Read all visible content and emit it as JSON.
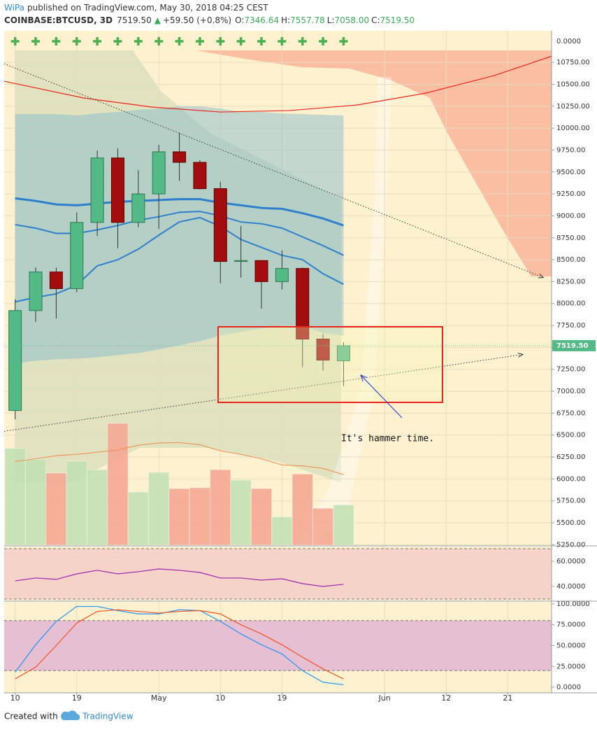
{
  "header": {
    "author": "WiPa",
    "published": "published on TradingView.com, May 30, 2018 04:25 CEST",
    "symbol": "COINBASE:BTCUSD, 3D",
    "last": "7519.50",
    "change": "+59.50 (+0.8%)",
    "ohlc": [
      {
        "label": "O:",
        "value": "7346.64"
      },
      {
        "label": "H:",
        "value": "7557.78"
      },
      {
        "label": "L:",
        "value": "7058.00"
      },
      {
        "label": "C:",
        "value": "7519.50"
      }
    ]
  },
  "footer": {
    "created": "Created with",
    "brand": "TradingView"
  },
  "chart_data": [
    {
      "type": "candlestick",
      "x": [
        0,
        3,
        6,
        9,
        12,
        15,
        18,
        21,
        24,
        27,
        30,
        33,
        36,
        39,
        42,
        45,
        48
      ],
      "open": [
        6780,
        7920,
        8360,
        8170,
        8925,
        9660,
        8925,
        9250,
        9730,
        9610,
        9310,
        8480,
        8490,
        8250,
        8400,
        7595,
        7346.64
      ],
      "high": [
        8050,
        8410,
        8410,
        9040,
        9745,
        9770,
        9520,
        9810,
        9950,
        9635,
        9390,
        8885,
        8495,
        8605,
        8410,
        7650,
        7557.78
      ],
      "low": [
        6680,
        7790,
        7830,
        8130,
        8770,
        8630,
        8870,
        8850,
        9400,
        9300,
        8230,
        8295,
        7940,
        8160,
        7275,
        7235,
        7058.0
      ],
      "close": [
        7920,
        8360,
        8170,
        8925,
        9660,
        8925,
        9250,
        9730,
        9610,
        9310,
        8480,
        8490,
        8250,
        8400,
        7595,
        7355,
        7519.5
      ],
      "up_color": "#53b987",
      "down_color": "#a30d0d",
      "xlim": [
        -1.6,
        78.4
      ],
      "xticks": [
        {
          "value": 0,
          "label": "10"
        },
        {
          "value": 9,
          "label": "19"
        },
        {
          "value": 21,
          "label": "May"
        },
        {
          "value": 30,
          "label": "10"
        },
        {
          "value": 39,
          "label": "19"
        },
        {
          "value": 54,
          "label": "Jun"
        },
        {
          "value": 63,
          "label": "12"
        },
        {
          "value": 72,
          "label": "21"
        }
      ],
      "ylim": [
        5245,
        11110
      ],
      "yticks": [
        {
          "value": 5250,
          "label": "5250.00"
        },
        {
          "value": 5500,
          "label": "5500.00"
        },
        {
          "value": 5750,
          "label": "5750.00"
        },
        {
          "value": 6000,
          "label": "6000.00"
        },
        {
          "value": 6250,
          "label": "6250.00"
        },
        {
          "value": 6500,
          "label": "6500.00"
        },
        {
          "value": 6750,
          "label": "6750.00"
        },
        {
          "value": 7000,
          "label": "7000.00"
        },
        {
          "value": 7250,
          "label": "7250.00"
        },
        {
          "value": 7500,
          "label": "7500.00"
        },
        {
          "value": 7750,
          "label": "7750.00"
        },
        {
          "value": 8000,
          "label": "8000.00"
        },
        {
          "value": 8250,
          "label": "8250.00"
        },
        {
          "value": 8500,
          "label": "8500.00"
        },
        {
          "value": 8750,
          "label": "8750.00"
        },
        {
          "value": 9000,
          "label": "9000.00"
        },
        {
          "value": 9250,
          "label": "9250.00"
        },
        {
          "value": 9500,
          "label": "9500.00"
        },
        {
          "value": 9750,
          "label": "9750.00"
        },
        {
          "value": 10000,
          "label": "10000.00"
        },
        {
          "value": 10250,
          "label": "10250.00"
        },
        {
          "value": 10500,
          "label": "10500.00"
        },
        {
          "value": 10750,
          "label": "10750.00"
        }
      ],
      "grid": true,
      "price_line": {
        "value": 7519.5,
        "label": "7519.50",
        "color": "#53b987"
      },
      "volume": {
        "axis_label": "0.0000",
        "vlim": [
          0,
          60
        ],
        "values": [
          11.3,
          10.0,
          8.4,
          9.8,
          8.8,
          14.2,
          6.2,
          8.5,
          6.6,
          6.7,
          8.8,
          7.6,
          6.6,
          3.3,
          8.3,
          4.3,
          4.7
        ],
        "up_color": "#bfe0b2",
        "down_color": "#f4a490"
      },
      "band": {
        "color": "#7fb9cc",
        "upper": [
          10160,
          10160,
          10160,
          10144,
          10168,
          10184,
          10208,
          10224,
          10248,
          10248,
          10224,
          10184,
          10184,
          10168,
          10160,
          10152,
          10144
        ],
        "lower": [
          7316,
          7348,
          7364,
          7372,
          7388,
          7412,
          7436,
          7476,
          7523,
          7571,
          7635,
          7675,
          7715,
          7747,
          7747,
          7660,
          7635
        ]
      },
      "series": [
        {
          "color": "#2f7fcf",
          "width": 3,
          "values": [
            9200,
            9170,
            9130,
            9120,
            9140,
            9160,
            9170,
            9180,
            9190,
            9190,
            9150,
            9120,
            9090,
            9080,
            9030,
            8970,
            8890
          ]
        },
        {
          "color": "#2f7fcf",
          "width": 2,
          "values": [
            8900,
            8860,
            8800,
            8800,
            8840,
            8890,
            8950,
            8990,
            9040,
            9050,
            9000,
            8930,
            8910,
            8860,
            8760,
            8660,
            8550
          ]
        },
        {
          "color": "#2f7fcf",
          "width": 2,
          "values": [
            8020,
            8070,
            8110,
            8210,
            8430,
            8500,
            8620,
            8780,
            8930,
            8980,
            8880,
            8730,
            8640,
            8550,
            8500,
            8340,
            8220
          ]
        },
        {
          "color": "#f08a4b",
          "width": 1,
          "values": [
            6200,
            6230,
            6265,
            6280,
            6305,
            6330,
            6385,
            6410,
            6415,
            6390,
            6320,
            6280,
            6230,
            6160,
            6150,
            6120,
            6050
          ]
        },
        {
          "color": "#e8261c",
          "width": 1.2,
          "x": [
            -1.6,
            10,
            20,
            30,
            40,
            50,
            60,
            70,
            78.4
          ],
          "values": [
            10535,
            10344,
            10240,
            10184,
            10200,
            10264,
            10399,
            10599,
            10820
          ]
        },
        {
          "color": "#333333",
          "width": 1,
          "dash": true,
          "x": [
            -1.6,
            77.2
          ],
          "values": [
            10734,
            8296
          ]
        },
        {
          "color": "#333333",
          "width": 1,
          "dash": true,
          "x": [
            -1.6,
            74.2
          ],
          "values": [
            6543,
            7420
          ]
        }
      ],
      "annotation": "It's hammer time."
    },
    {
      "type": "line",
      "ylim": [
        28.3,
        72.8
      ],
      "yticks": [
        {
          "value": 60,
          "label": "60.0000"
        },
        {
          "value": 40,
          "label": "40.0000"
        }
      ],
      "band": {
        "upper": 70,
        "lower": 30,
        "color": "#f6d3c8"
      },
      "series": [
        {
          "color": "#9c27b0",
          "values": [
            44.4,
            46.7,
            45.6,
            50,
            52.8,
            50,
            51.7,
            53.9,
            52.8,
            51.1,
            46.7,
            46.7,
            45,
            46.1,
            42.2,
            40,
            41.7
          ]
        }
      ]
    },
    {
      "type": "line",
      "ylim": [
        -6.7,
        102.5
      ],
      "yticks": [
        {
          "value": 100,
          "label": "100.0000"
        },
        {
          "value": 75,
          "label": "75.0000"
        },
        {
          "value": 50,
          "label": "50.0000"
        },
        {
          "value": 25,
          "label": "25.0000"
        },
        {
          "value": 0,
          "label": "0.0000"
        }
      ],
      "band": {
        "upper": 80,
        "lower": 20,
        "color": "#e6bfd3"
      },
      "series": [
        {
          "color": "#2196f3",
          "values": [
            18,
            51,
            79,
            97,
            97,
            92,
            88,
            88,
            93,
            92,
            79,
            64,
            51,
            40,
            20,
            6,
            3
          ]
        },
        {
          "color": "#f4511e",
          "values": [
            10,
            24,
            50,
            77,
            91,
            93,
            91,
            89,
            91,
            92,
            88,
            75,
            64,
            51,
            36,
            22,
            10
          ]
        }
      ]
    }
  ]
}
